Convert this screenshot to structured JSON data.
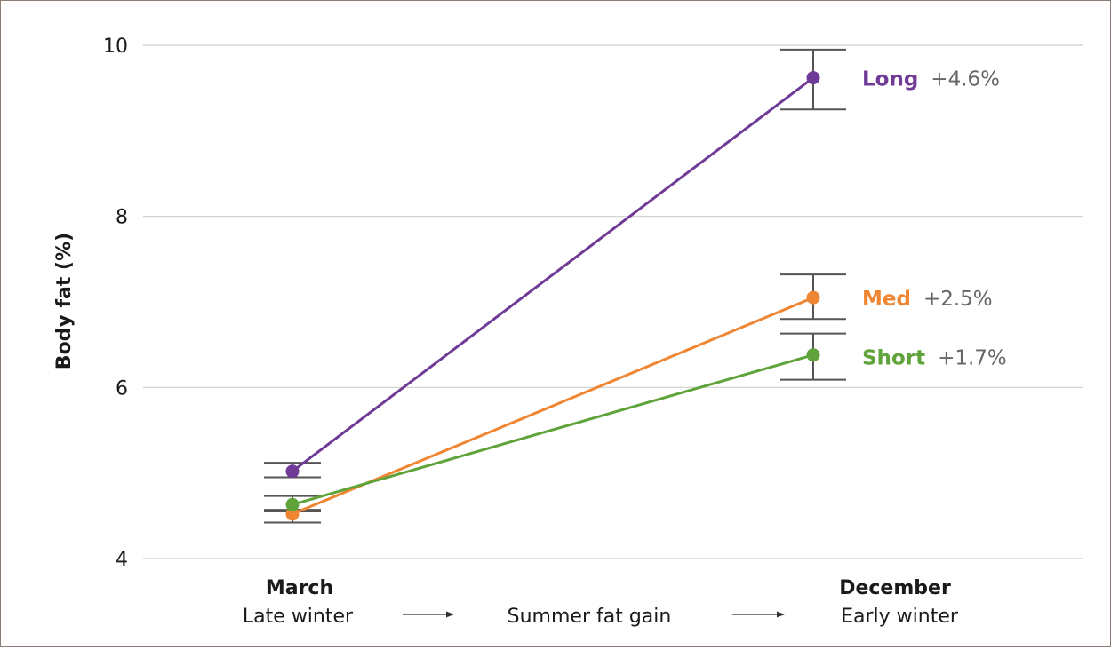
{
  "chart_data": {
    "type": "line",
    "ylabel": "Body fat (%)",
    "ylim": [
      4,
      10
    ],
    "yticks": [
      4,
      6,
      8,
      10
    ],
    "grid": true,
    "categories": [
      {
        "label": "March",
        "sublabel": "Late winter"
      },
      {
        "label": "December",
        "sublabel": "Early winter"
      }
    ],
    "middle_label": "Summer fat gain",
    "series": [
      {
        "name": "Long",
        "change": "+4.6%",
        "color": "#6f3b96",
        "values": [
          5.02,
          9.62
        ],
        "errors": [
          [
            4.95,
            5.12
          ],
          [
            9.25,
            9.95
          ]
        ]
      },
      {
        "name": "Med",
        "change": "+2.5%",
        "color": "#ef8633",
        "values": [
          4.52,
          7.05
        ],
        "errors": [
          [
            4.42,
            4.57
          ],
          [
            6.8,
            7.32
          ]
        ]
      },
      {
        "name": "Short",
        "change": "+1.7%",
        "color": "#5fa33a",
        "values": [
          4.63,
          6.38
        ],
        "errors": [
          [
            4.55,
            4.73
          ],
          [
            6.09,
            6.63
          ]
        ]
      }
    ]
  }
}
